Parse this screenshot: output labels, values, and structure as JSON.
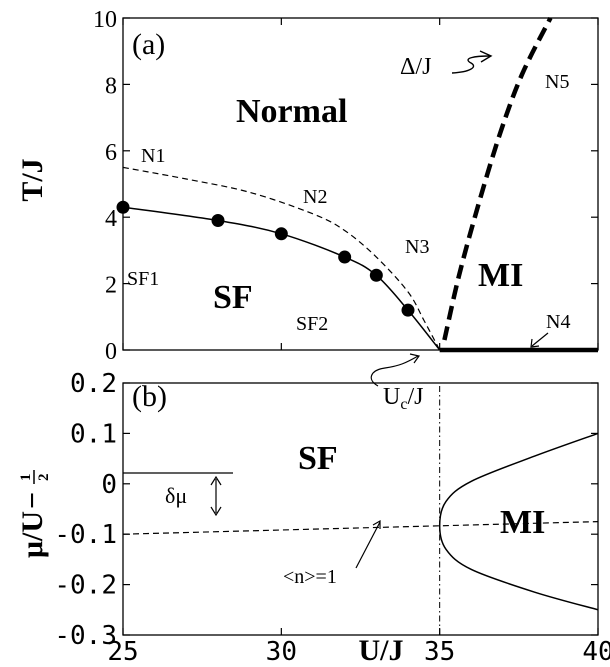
{
  "chart_data": [
    {
      "panel_label": "(a)",
      "type": "line",
      "xlabel": "",
      "ylabel": "T/J",
      "xlim": [
        25,
        40
      ],
      "ylim": [
        0,
        10
      ],
      "yticks": [
        "0",
        "2",
        "4",
        "6",
        "8",
        "10"
      ],
      "series": [
        {
          "style": "solid",
          "x": [
            25,
            28,
            30,
            32,
            33,
            34,
            35
          ],
          "y": [
            4.3,
            3.9,
            3.5,
            2.8,
            2.25,
            1.2,
            0
          ]
        },
        {
          "style": "dots",
          "x": [
            25,
            28,
            30,
            32,
            33,
            34
          ],
          "y": [
            4.3,
            3.9,
            3.5,
            2.8,
            2.25,
            1.2
          ]
        },
        {
          "style": "dashed",
          "x": [
            25,
            27,
            29,
            31,
            32,
            33,
            34,
            34.5,
            35
          ],
          "y": [
            5.5,
            5.15,
            4.75,
            4.1,
            3.6,
            2.8,
            1.75,
            0.9,
            0
          ]
        },
        {
          "style": "thick-dashed",
          "x": [
            35.15,
            35.6,
            36.2,
            36.9,
            37.6,
            38.5
          ],
          "y": [
            0.3,
            2.2,
            4.3,
            6.5,
            8.3,
            10
          ]
        },
        {
          "style": "thick-solid",
          "x": [
            35,
            40
          ],
          "y": [
            0,
            0
          ]
        }
      ],
      "annotations": {
        "normal": "Normal",
        "sf": "SF",
        "mi": "MI",
        "n1": "N1",
        "n2": "N2",
        "n3": "N3",
        "n4": "N4",
        "n5": "N5",
        "sf1": "SF1",
        "sf2": "SF2",
        "delta_label": "Δ/J",
        "uc_label": "U",
        "uc_sub": "c",
        "uc_tail": "/J"
      }
    },
    {
      "panel_label": "(b)",
      "type": "line",
      "xlabel": "U/J",
      "ylabel_main": "μ/U",
      "ylabel_minus": "−",
      "ylabel_frac_num": "1",
      "ylabel_frac_den": "2",
      "xlim": [
        25,
        40
      ],
      "ylim": [
        -0.3,
        0.2
      ],
      "xticks": [
        "25",
        "30",
        "35",
        "40"
      ],
      "yticks": [
        "0.2",
        "0.1",
        "0",
        "-0.1",
        "-0.2",
        "-0.3"
      ],
      "series": [
        {
          "style": "dashed",
          "x": [
            25,
            40
          ],
          "y": [
            -0.1,
            -0.075
          ]
        },
        {
          "style": "solid",
          "x": [
            40,
            38,
            36,
            35.2,
            35,
            35.2,
            36,
            38,
            40
          ],
          "y": [
            0.1,
            0.055,
            0.005,
            -0.035,
            -0.083,
            -0.13,
            -0.17,
            -0.215,
            -0.25
          ]
        },
        {
          "style": "dash-dot-vertical",
          "x": [
            35,
            35
          ],
          "y": [
            -0.3,
            0.2
          ]
        }
      ],
      "annotations": {
        "sf": "SF",
        "mi": "MI",
        "delta_mu": "δμ",
        "n_eq_1": "<n>=1"
      }
    }
  ]
}
